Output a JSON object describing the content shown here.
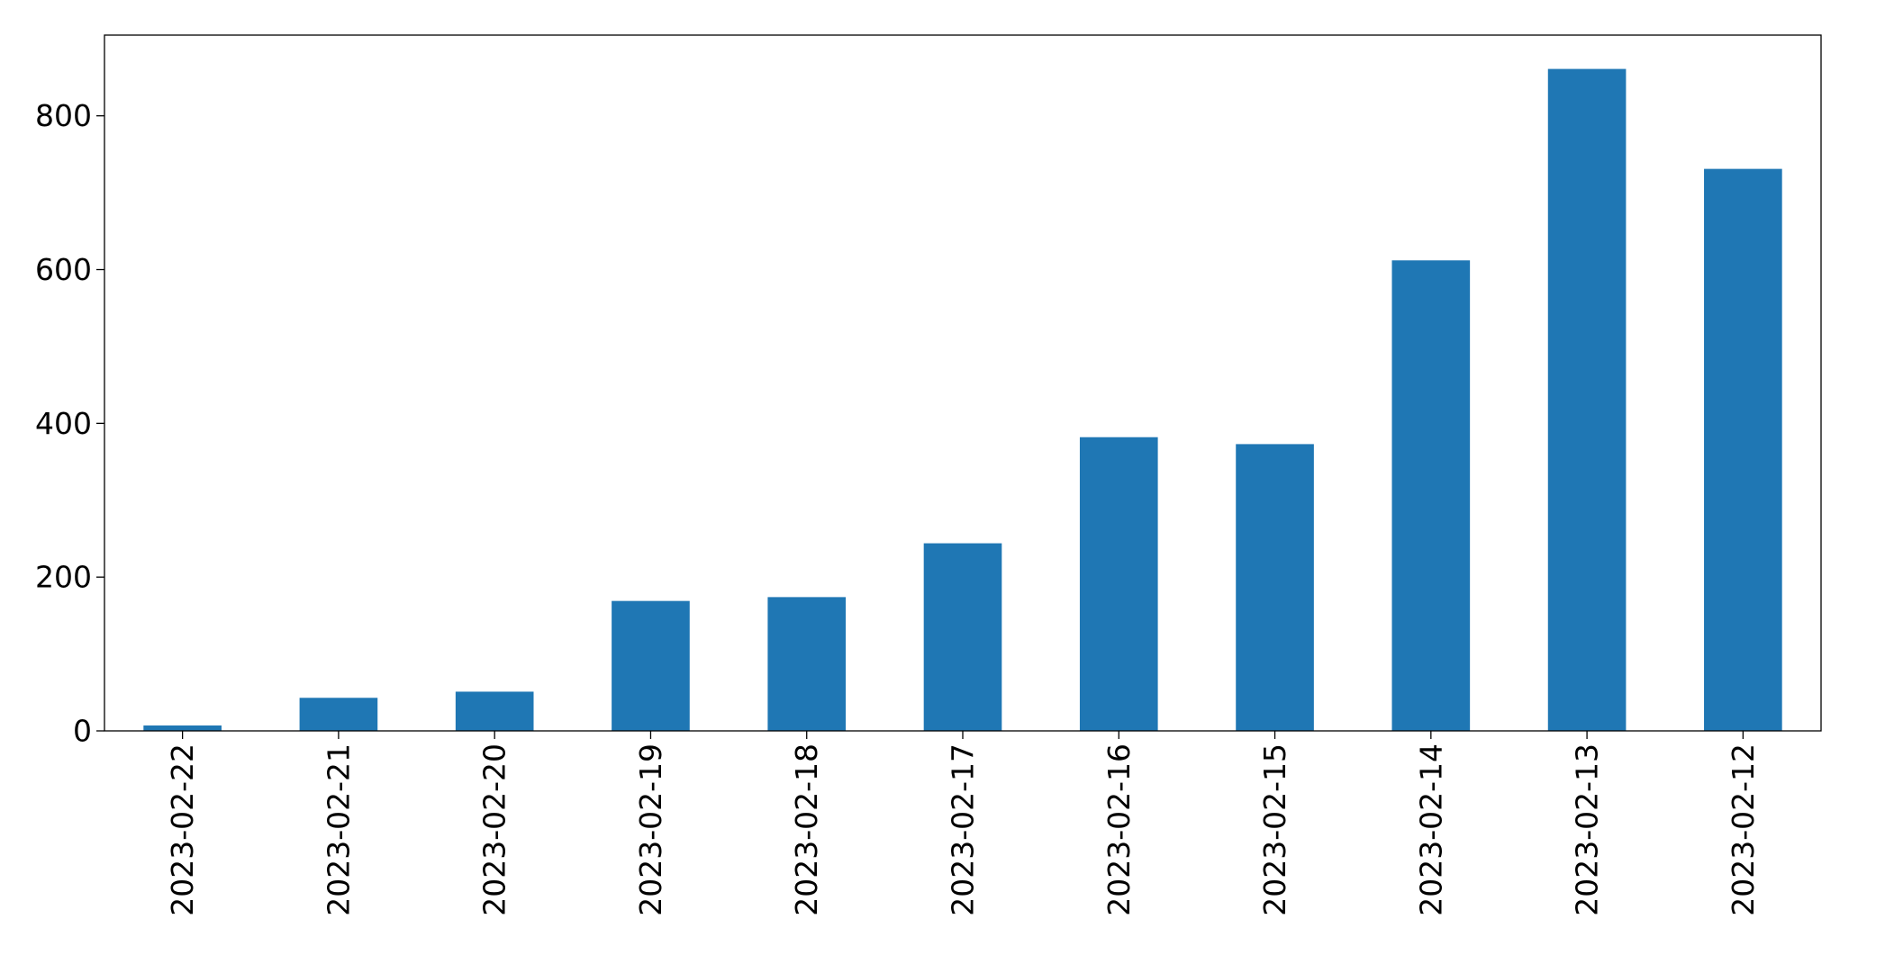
{
  "chart_data": {
    "type": "bar",
    "title": "",
    "xlabel": "",
    "ylabel": "",
    "categories": [
      "2023-02-22",
      "2023-02-21",
      "2023-02-20",
      "2023-02-19",
      "2023-02-18",
      "2023-02-17",
      "2023-02-16",
      "2023-02-15",
      "2023-02-14",
      "2023-02-13",
      "2023-02-12"
    ],
    "values": [
      7,
      43,
      51,
      169,
      174,
      244,
      382,
      373,
      612,
      861,
      731
    ],
    "ylim": [
      0,
      905
    ],
    "yticks": [
      0,
      200,
      400,
      600,
      800
    ],
    "grid": false,
    "legend": "none",
    "bar_color": "#1f77b4"
  }
}
